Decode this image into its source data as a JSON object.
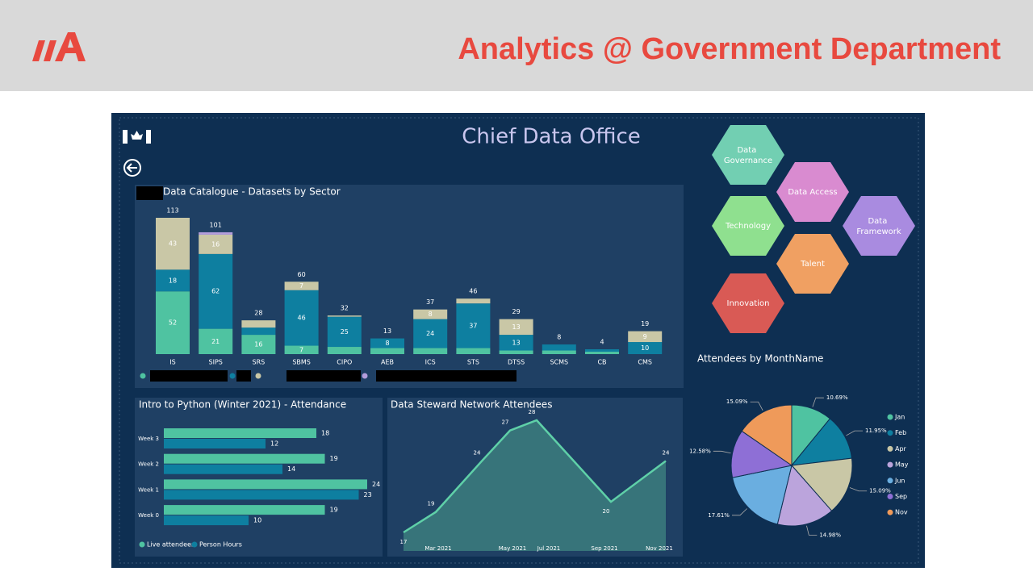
{
  "header": {
    "title": "Analytics @ Government Department"
  },
  "dashboard": {
    "title": "Chief Data Office"
  },
  "hexagons": [
    {
      "label": "Data Governance",
      "color": "#72cfb2"
    },
    {
      "label": "Data Access",
      "color": "#d98bd0"
    },
    {
      "label": "Technology",
      "color": "#8fe08f"
    },
    {
      "label": "Data Framework",
      "color": "#a98be0"
    },
    {
      "label": "Talent",
      "color": "#f0a062"
    },
    {
      "label": "Innovation",
      "color": "#d95a55"
    }
  ],
  "chart_data": [
    {
      "type": "stacked_bar",
      "title": "Data Catalogue - Datasets by Sector",
      "categories": [
        "IS",
        "SIPS",
        "SRS",
        "SBMS",
        "CIPO",
        "AEB",
        "ICS",
        "STS",
        "DTSS",
        "SCMS",
        "CB",
        "CMS"
      ],
      "series": [
        {
          "color": "#4fc3a1",
          "values": [
            52,
            21,
            16,
            7,
            6,
            5,
            5,
            5,
            3,
            3,
            2,
            0
          ]
        },
        {
          "color": "#0e7fa0",
          "values": [
            18,
            62,
            6,
            46,
            25,
            8,
            24,
            37,
            13,
            5,
            2,
            10
          ]
        },
        {
          "color": "#c9c7a6",
          "values": [
            43,
            16,
            6,
            7,
            1,
            0,
            8,
            4,
            13,
            0,
            0,
            9
          ]
        },
        {
          "color": "#b39ddb",
          "values": [
            0,
            2,
            0,
            0,
            0,
            0,
            0,
            0,
            0,
            0,
            0,
            0
          ]
        }
      ],
      "totals": [
        113,
        101,
        28,
        60,
        32,
        13,
        37,
        46,
        29,
        8,
        4,
        19
      ]
    },
    {
      "type": "hbar",
      "title": "Intro to Python (Winter 2021) - Attendance",
      "categories": [
        "Week 3",
        "Week 2",
        "Week 1",
        "Week 0"
      ],
      "series": [
        {
          "name": "Live attendees",
          "color": "#4fc3a1",
          "values": [
            18,
            19,
            24,
            19
          ]
        },
        {
          "name": "Person Hours",
          "color": "#0e7fa0",
          "values": [
            12,
            14,
            23,
            10
          ]
        }
      ]
    },
    {
      "type": "area",
      "title": "Data Steward Network Attendees",
      "categories": [
        null,
        "Mar 2021",
        null,
        "May 2021",
        "Jul 2021",
        "Sep 2021",
        "Nov 2021"
      ],
      "values": [
        17,
        19,
        24,
        27,
        28,
        20,
        24
      ],
      "color": "#5fd0a8"
    },
    {
      "type": "pie",
      "title": "Attendees by MonthName",
      "categories": [
        "Jan",
        "Feb",
        "Apr",
        "May",
        "Jun",
        "Sep",
        "Nov"
      ],
      "values": [
        10.69,
        11.95,
        15.09,
        14.98,
        17.61,
        12.58,
        15.09
      ],
      "value_labels": [
        "10.69%",
        "11.95%",
        "15.09%",
        "14.98%",
        "17.61%",
        "12.58%",
        "15.09%"
      ],
      "colors": [
        "#4fc3a1",
        "#0e7fa0",
        "#c9c7a6",
        "#bba4dc",
        "#6aaee0",
        "#8e6fd6",
        "#ef9a5a"
      ]
    }
  ]
}
